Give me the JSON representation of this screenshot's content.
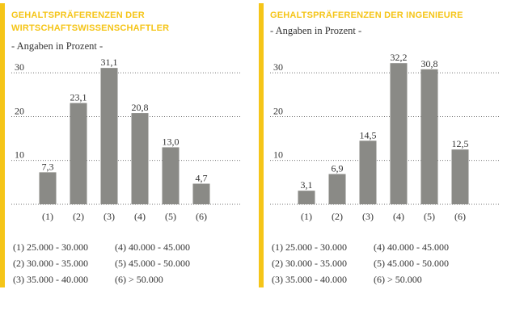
{
  "colors": {
    "accent": "#f5c518",
    "bar": "#8a8a86",
    "grid": "#444444"
  },
  "chart_data": [
    {
      "type": "bar",
      "title": "GEHALTSPRÄFERENZEN DER WIRTSCHAFTSWISSENSCHAFTLER",
      "subtitle": "- Angaben in Prozent -",
      "categories": [
        "(1)",
        "(2)",
        "(3)",
        "(4)",
        "(5)",
        "(6)"
      ],
      "values": [
        7.3,
        23.1,
        31.1,
        20.8,
        13.0,
        4.7
      ],
      "value_labels": [
        "7,3",
        "23,1",
        "31,1",
        "20,8",
        "13,0",
        "4,7"
      ],
      "yticks": [
        10,
        20,
        30
      ],
      "ylim": [
        0,
        35
      ],
      "xlabel": "",
      "ylabel": "",
      "legend": [
        [
          "(1) 25.000 - 30.000",
          "(4) 40.000 - 45.000"
        ],
        [
          "(2) 30.000 - 35.000",
          "(5) 45.000 - 50.000"
        ],
        [
          "(3) 35.000 - 40.000",
          "(6) > 50.000"
        ]
      ]
    },
    {
      "type": "bar",
      "title": "GEHALTSPRÄFERENZEN DER INGENIEURE",
      "subtitle": "- Angaben in Prozent -",
      "categories": [
        "(1)",
        "(2)",
        "(3)",
        "(4)",
        "(5)",
        "(6)"
      ],
      "values": [
        3.1,
        6.9,
        14.5,
        32.2,
        30.8,
        12.5
      ],
      "value_labels": [
        "3,1",
        "6,9",
        "14,5",
        "32,2",
        "30,8",
        "12,5"
      ],
      "yticks": [
        10,
        20,
        30
      ],
      "ylim": [
        0,
        35
      ],
      "xlabel": "",
      "ylabel": "",
      "legend": [
        [
          "(1) 25.000 - 30.000",
          "(4) 40.000 - 45.000"
        ],
        [
          "(2) 30.000 - 35.000",
          "(5) 45.000 - 50.000"
        ],
        [
          "(3) 35.000 - 40.000",
          "(6) > 50.000"
        ]
      ]
    }
  ]
}
